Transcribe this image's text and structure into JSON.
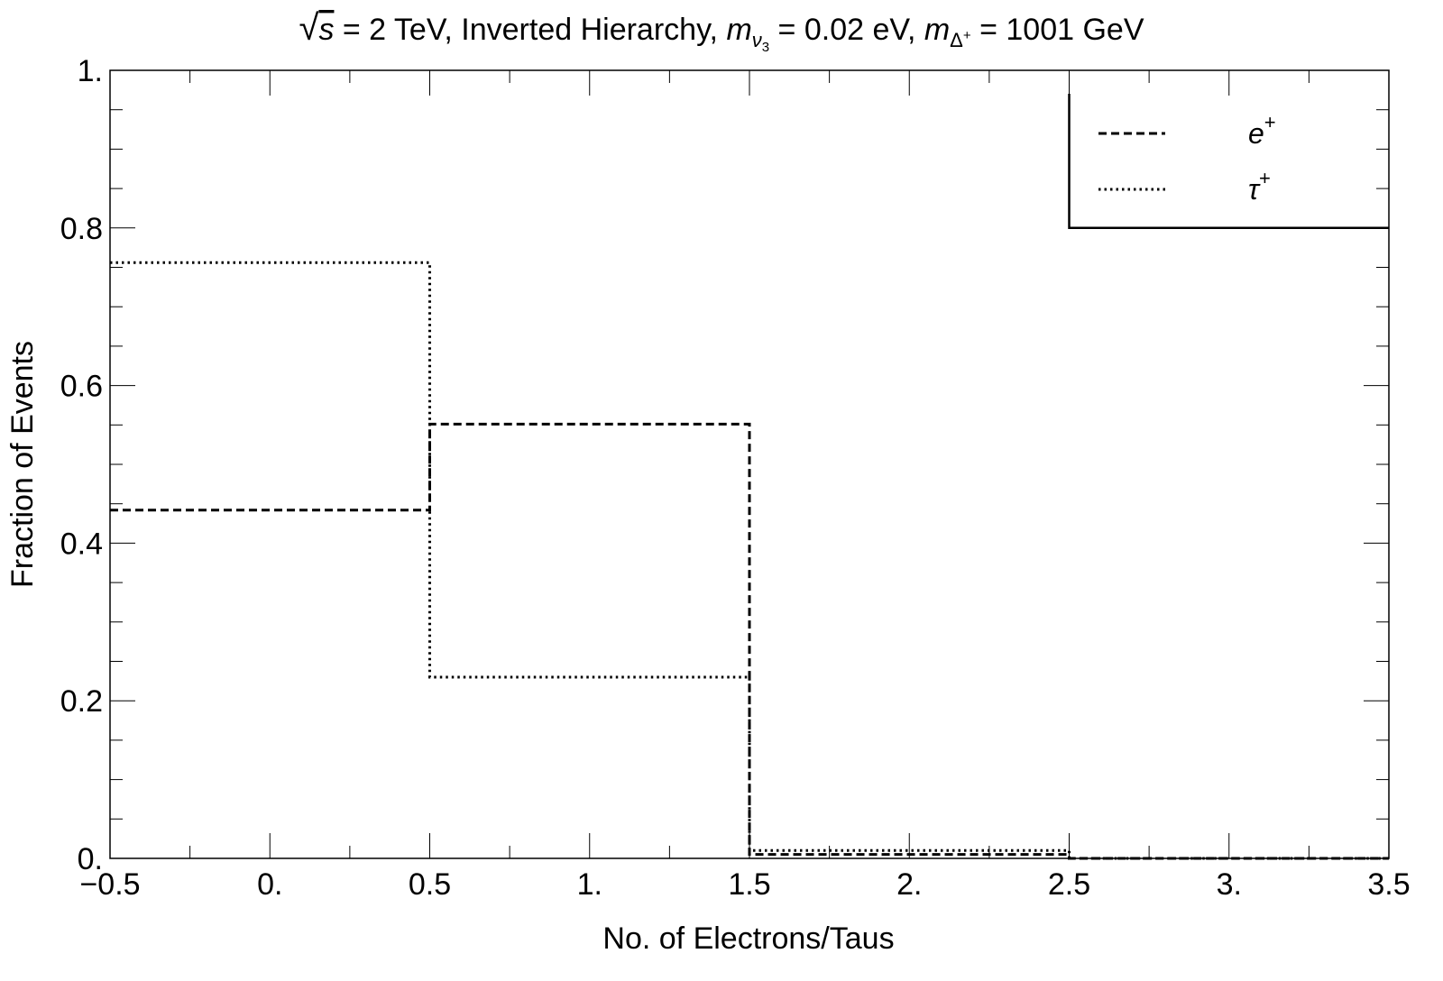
{
  "chart_data": {
    "type": "histogram",
    "title": {
      "sqrt_symbol": "√",
      "sqrt_var": "s",
      "part1": " = 2 TeV, Inverted Hierarchy, ",
      "m1": "m",
      "m1_sub": "ν",
      "m1_subsub": "3",
      "part2": " = 0.02 eV, ",
      "m2": "m",
      "m2_sub": "Δ",
      "m2_subsup": "+",
      "part3": " = 1001 GeV"
    },
    "xlabel": "No. of Electrons/Taus",
    "ylabel": "Fraction of Events",
    "xlim": [
      -0.5,
      3.5
    ],
    "ylim": [
      0,
      1
    ],
    "x_ticks": [
      {
        "value": -0.5,
        "label": "−0.5"
      },
      {
        "value": 0,
        "label": "0."
      },
      {
        "value": 0.5,
        "label": "0.5"
      },
      {
        "value": 1,
        "label": "1."
      },
      {
        "value": 1.5,
        "label": "1.5"
      },
      {
        "value": 2,
        "label": "2."
      },
      {
        "value": 2.5,
        "label": "2.5"
      },
      {
        "value": 3,
        "label": "3."
      },
      {
        "value": 3.5,
        "label": "3.5"
      }
    ],
    "y_ticks": [
      {
        "value": 0,
        "label": "0."
      },
      {
        "value": 0.2,
        "label": "0.2"
      },
      {
        "value": 0.4,
        "label": "0.4"
      },
      {
        "value": 0.6,
        "label": "0.6"
      },
      {
        "value": 0.8,
        "label": "0.8"
      },
      {
        "value": 1,
        "label": "1."
      }
    ],
    "bin_edges": [
      -0.5,
      0.5,
      1.5,
      2.5,
      3.5
    ],
    "series": [
      {
        "name": "e",
        "name_sup": "+",
        "style": "dashed",
        "values": [
          0.442,
          0.551,
          0.005,
          0.0
        ]
      },
      {
        "name": "τ",
        "name_sup": "+",
        "style": "dotted",
        "values": [
          0.756,
          0.23,
          0.01,
          0.0
        ]
      }
    ],
    "legend": {
      "position": "top-right"
    },
    "grid": false,
    "colors": {
      "line": "#000000"
    }
  }
}
